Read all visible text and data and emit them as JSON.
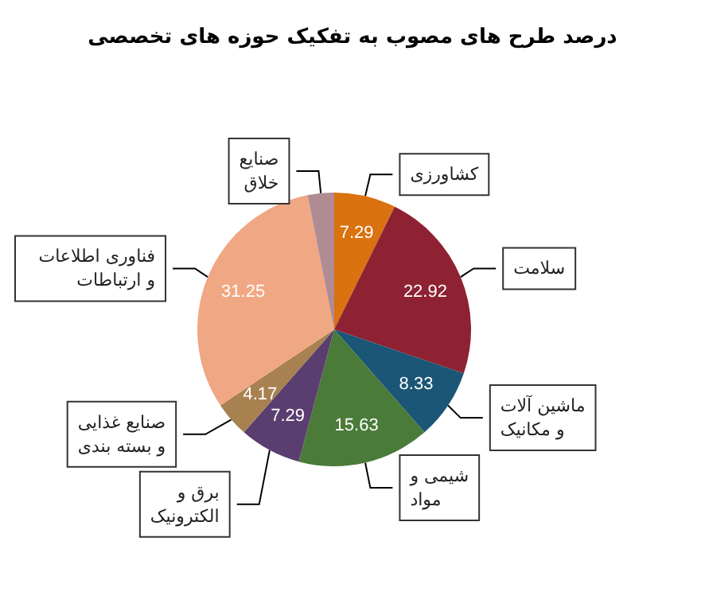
{
  "chart_data": {
    "type": "pie",
    "title": "درصد طرح های مصوب به تفکیک حوزه های تخصصی",
    "categories": [
      "کشاورزی",
      "سلامت",
      "ماشین آلات\nو مکانیک",
      "شیمی و\nمواد",
      "برق و\nالکترونیک",
      "صنایع غذایی\nو بسته بندی",
      "فناوری اطلاعات\nو ارتباطات",
      "صنایع\nخلاق"
    ],
    "values": [
      7.29,
      22.92,
      8.33,
      15.63,
      7.29,
      4.17,
      31.25,
      3.12
    ],
    "value_labels": [
      "7.29",
      "22.92",
      "8.33",
      "15.63",
      "7.29",
      "4.17",
      "31.25",
      null
    ],
    "colors": [
      "#d9720f",
      "#8e2232",
      "#1b5676",
      "#4a7b39",
      "#5b3e70",
      "#a88150",
      "#f0a783",
      "#b08b94"
    ],
    "legend": false
  }
}
